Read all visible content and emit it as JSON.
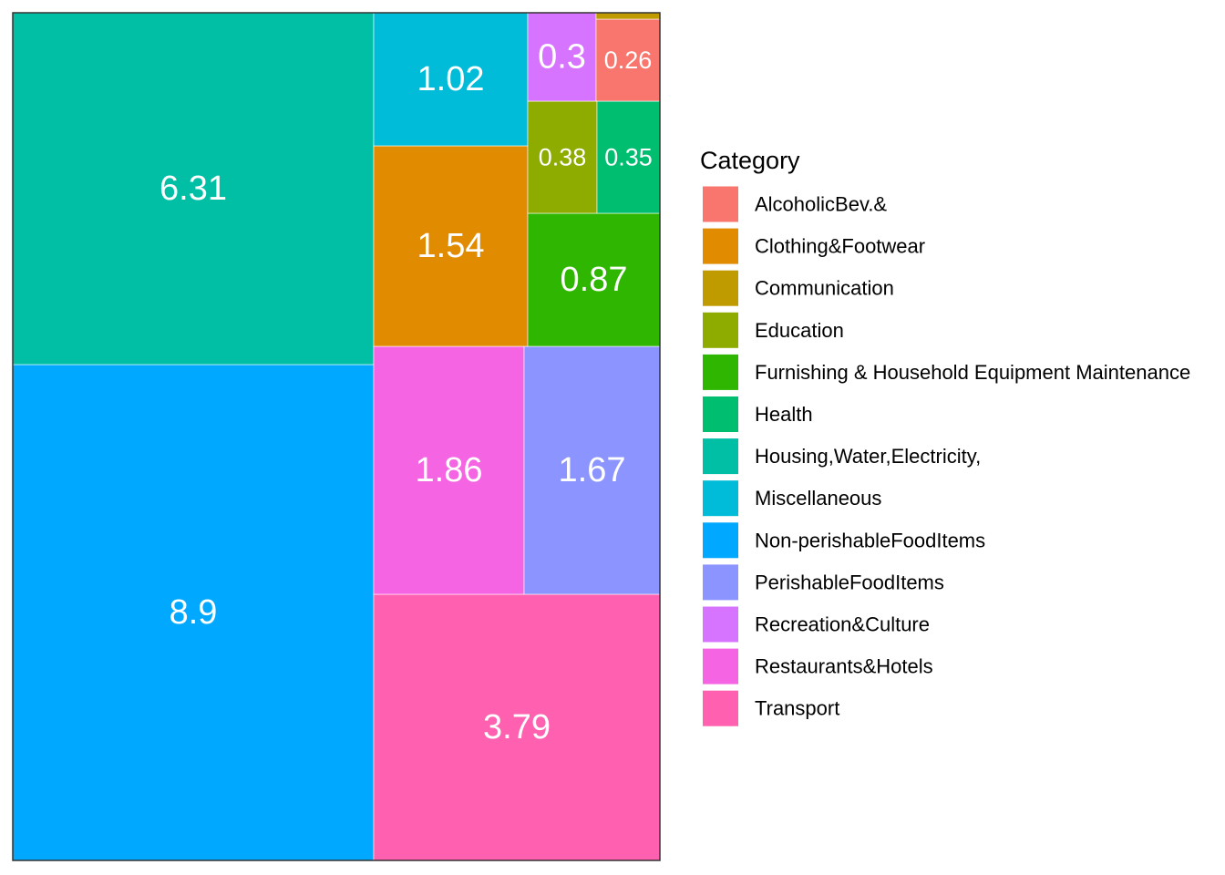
{
  "chart_data": {
    "type": "treemap",
    "legend_title": "Category",
    "legend_position": "right",
    "tiles": [
      {
        "category": "Non-perishableFoodItems",
        "value": 8.9,
        "label": "8.9",
        "color": "#00A9FF"
      },
      {
        "category": "Housing,Water,Electricity,",
        "value": 6.31,
        "label": "6.31",
        "color": "#00BFA5"
      },
      {
        "category": "Transport",
        "value": 3.79,
        "label": "3.79",
        "color": "#FF61B0"
      },
      {
        "category": "Restaurants&Hotels",
        "value": 1.86,
        "label": "1.86",
        "color": "#F564E3"
      },
      {
        "category": "PerishableFoodItems",
        "value": 1.67,
        "label": "1.67",
        "color": "#8C94FF"
      },
      {
        "category": "Clothing&Footwear",
        "value": 1.54,
        "label": "1.54",
        "color": "#E08B00"
      },
      {
        "category": "Miscellaneous",
        "value": 1.02,
        "label": "1.02",
        "color": "#00BCD8"
      },
      {
        "category": "Furnishing & Household Equipment Maintenance",
        "value": 0.87,
        "label": "0.87",
        "color": "#2EB600"
      },
      {
        "category": "Education",
        "value": 0.38,
        "label": "0.38",
        "color": "#8EAB00"
      },
      {
        "category": "Health",
        "value": 0.35,
        "label": "0.35",
        "color": "#00BE70"
      },
      {
        "category": "Recreation&Culture",
        "value": 0.3,
        "label": "0.3",
        "color": "#D774FF"
      },
      {
        "category": "AlcoholicBev.&",
        "value": 0.26,
        "label": "0.26",
        "color": "#F8766D"
      },
      {
        "category": "Communication",
        "value": 0.02,
        "label": "",
        "color": "#C09B00"
      }
    ],
    "legend": [
      {
        "label": "AlcoholicBev.&",
        "color": "#F8766D"
      },
      {
        "label": "Clothing&Footwear",
        "color": "#E08B00"
      },
      {
        "label": "Communication",
        "color": "#C09B00"
      },
      {
        "label": "Education",
        "color": "#8EAB00"
      },
      {
        "label": "Furnishing & Household Equipment Maintenance",
        "color": "#2EB600"
      },
      {
        "label": "Health",
        "color": "#00BE70"
      },
      {
        "label": "Housing,Water,Electricity,",
        "color": "#00BFA5"
      },
      {
        "label": "Miscellaneous",
        "color": "#00BCD8"
      },
      {
        "label": "Non-perishableFoodItems",
        "color": "#00A9FF"
      },
      {
        "label": "PerishableFoodItems",
        "color": "#8C94FF"
      },
      {
        "label": "Recreation&Culture",
        "color": "#D774FF"
      },
      {
        "label": "Restaurants&Hotels",
        "color": "#F564E3"
      },
      {
        "label": "Transport",
        "color": "#FF61B0"
      }
    ]
  }
}
